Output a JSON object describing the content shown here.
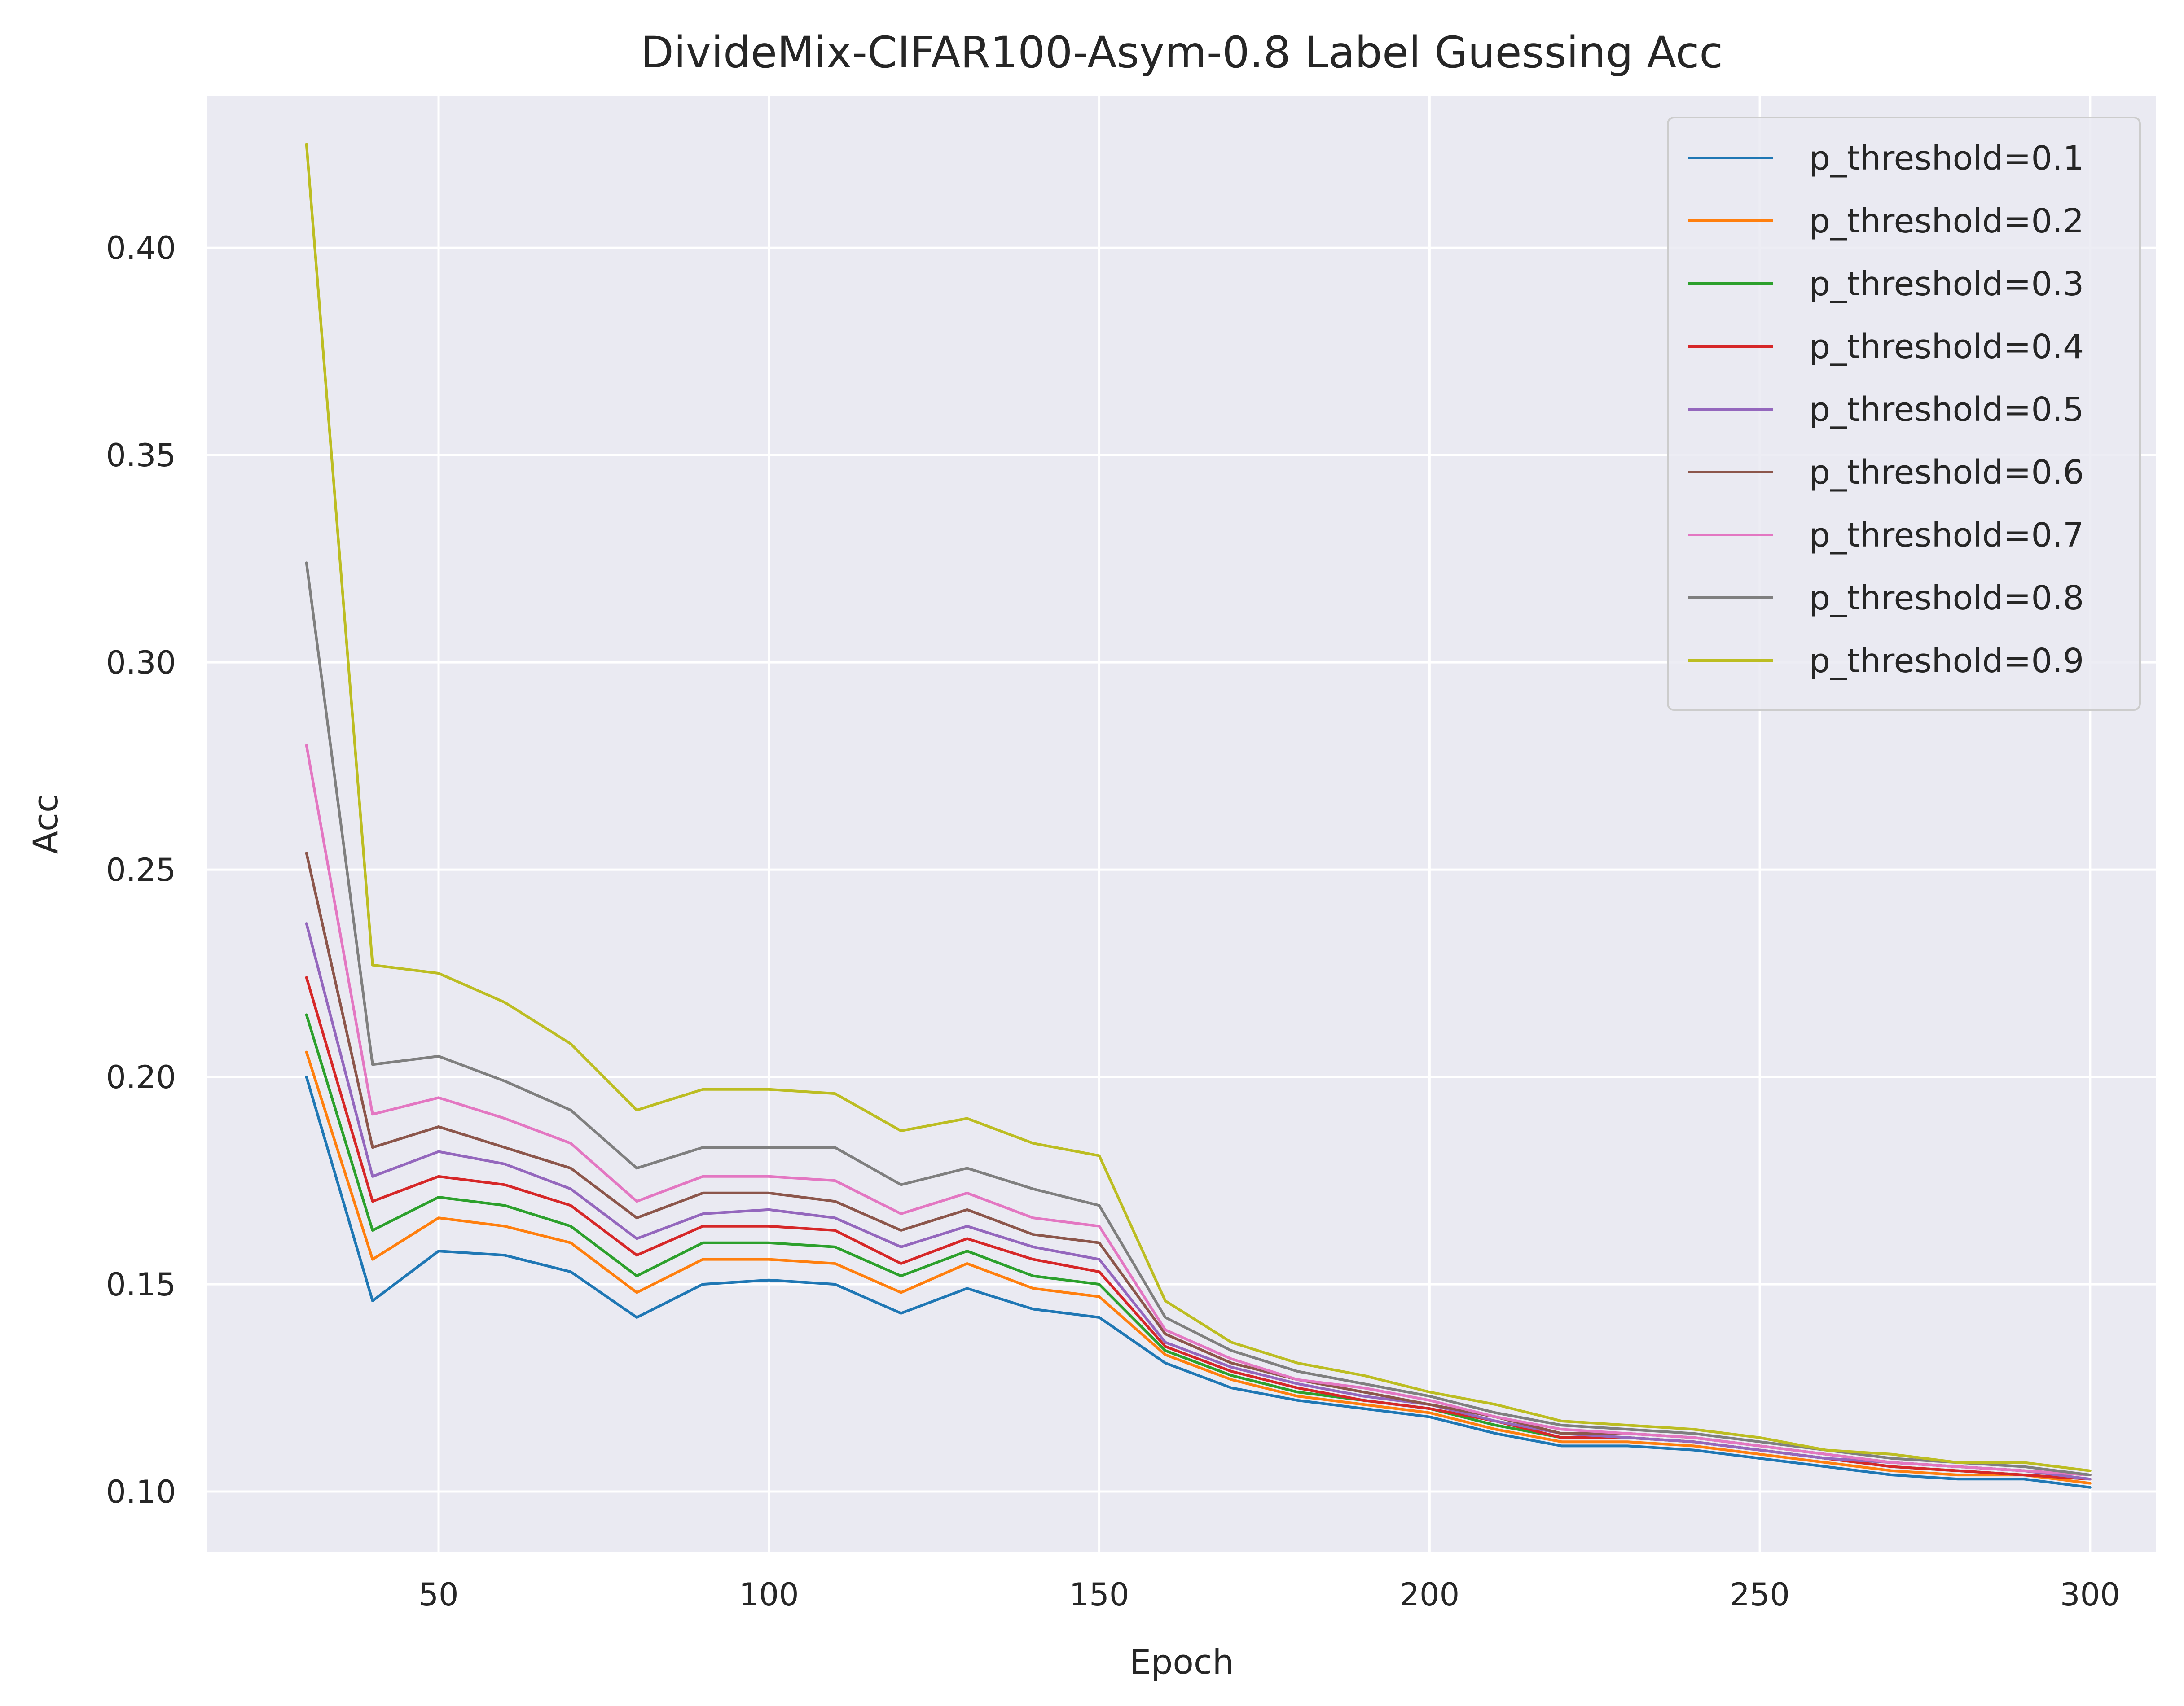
{
  "chart_data": {
    "type": "line",
    "title": "DivideMix-CIFAR100-Asym-0.8 Label Guessing Acc",
    "xlabel": "Epoch",
    "ylabel": "Acc",
    "xlim": [
      15,
      310
    ],
    "ylim": [
      0.0855,
      0.4365
    ],
    "xticks": [
      50,
      100,
      150,
      200,
      250,
      300
    ],
    "xtick_labels": [
      "50",
      "100",
      "150",
      "200",
      "250",
      "300"
    ],
    "yticks": [
      0.1,
      0.15,
      0.2,
      0.25,
      0.3,
      0.35,
      0.4
    ],
    "ytick_labels": [
      "0.10",
      "0.15",
      "0.20",
      "0.25",
      "0.30",
      "0.35",
      "0.40"
    ],
    "grid": true,
    "legend_position": "top-right",
    "background_color": "#eaeaf2",
    "x": [
      30,
      40,
      50,
      60,
      70,
      80,
      90,
      100,
      110,
      120,
      130,
      140,
      150,
      160,
      170,
      180,
      190,
      200,
      210,
      220,
      230,
      240,
      250,
      260,
      270,
      280,
      290,
      300
    ],
    "series": [
      {
        "name": "p_threshold=0.1",
        "color": "#1f77b4",
        "values": [
          0.2,
          0.146,
          0.158,
          0.157,
          0.153,
          0.142,
          0.15,
          0.151,
          0.15,
          0.143,
          0.149,
          0.144,
          0.142,
          0.131,
          0.125,
          0.122,
          0.12,
          0.118,
          0.114,
          0.111,
          0.111,
          0.11,
          0.108,
          0.106,
          0.104,
          0.103,
          0.103,
          0.101
        ]
      },
      {
        "name": "p_threshold=0.2",
        "color": "#ff7f0e",
        "values": [
          0.206,
          0.156,
          0.166,
          0.164,
          0.16,
          0.148,
          0.156,
          0.156,
          0.155,
          0.148,
          0.155,
          0.149,
          0.147,
          0.133,
          0.127,
          0.123,
          0.121,
          0.119,
          0.115,
          0.112,
          0.112,
          0.111,
          0.109,
          0.107,
          0.105,
          0.104,
          0.104,
          0.102
        ]
      },
      {
        "name": "p_threshold=0.3",
        "color": "#2ca02c",
        "values": [
          0.215,
          0.163,
          0.171,
          0.169,
          0.164,
          0.152,
          0.16,
          0.16,
          0.159,
          0.152,
          0.158,
          0.152,
          0.15,
          0.134,
          0.128,
          0.124,
          0.122,
          0.12,
          0.116,
          0.113,
          0.113,
          0.112,
          0.11,
          0.108,
          0.106,
          0.105,
          0.104,
          0.103
        ]
      },
      {
        "name": "p_threshold=0.4",
        "color": "#d62728",
        "values": [
          0.224,
          0.17,
          0.176,
          0.174,
          0.169,
          0.157,
          0.164,
          0.164,
          0.163,
          0.155,
          0.161,
          0.156,
          0.153,
          0.135,
          0.129,
          0.125,
          0.122,
          0.12,
          0.117,
          0.113,
          0.113,
          0.112,
          0.11,
          0.108,
          0.106,
          0.105,
          0.104,
          0.103
        ]
      },
      {
        "name": "p_threshold=0.5",
        "color": "#9467bd",
        "values": [
          0.237,
          0.176,
          0.182,
          0.179,
          0.173,
          0.161,
          0.167,
          0.168,
          0.166,
          0.159,
          0.164,
          0.159,
          0.156,
          0.136,
          0.13,
          0.126,
          0.123,
          0.121,
          0.117,
          0.114,
          0.113,
          0.112,
          0.11,
          0.108,
          0.107,
          0.106,
          0.105,
          0.103
        ]
      },
      {
        "name": "p_threshold=0.6",
        "color": "#8c564b",
        "values": [
          0.254,
          0.183,
          0.188,
          0.183,
          0.178,
          0.166,
          0.172,
          0.172,
          0.17,
          0.163,
          0.168,
          0.162,
          0.16,
          0.138,
          0.131,
          0.127,
          0.124,
          0.121,
          0.118,
          0.114,
          0.114,
          0.113,
          0.111,
          0.109,
          0.107,
          0.106,
          0.105,
          0.104
        ]
      },
      {
        "name": "p_threshold=0.7",
        "color": "#e377c2",
        "values": [
          0.28,
          0.191,
          0.195,
          0.19,
          0.184,
          0.17,
          0.176,
          0.176,
          0.175,
          0.167,
          0.172,
          0.166,
          0.164,
          0.139,
          0.132,
          0.127,
          0.125,
          0.122,
          0.118,
          0.115,
          0.114,
          0.113,
          0.111,
          0.109,
          0.107,
          0.106,
          0.105,
          0.104
        ]
      },
      {
        "name": "p_threshold=0.8",
        "color": "#7f7f7f",
        "values": [
          0.324,
          0.203,
          0.205,
          0.199,
          0.192,
          0.178,
          0.183,
          0.183,
          0.183,
          0.174,
          0.178,
          0.173,
          0.169,
          0.142,
          0.134,
          0.129,
          0.126,
          0.123,
          0.119,
          0.116,
          0.115,
          0.114,
          0.112,
          0.11,
          0.108,
          0.107,
          0.106,
          0.104
        ]
      },
      {
        "name": "p_threshold=0.9",
        "color": "#bcbd22",
        "values": [
          0.425,
          0.227,
          0.225,
          0.218,
          0.208,
          0.192,
          0.197,
          0.197,
          0.196,
          0.187,
          0.19,
          0.184,
          0.181,
          0.146,
          0.136,
          0.131,
          0.128,
          0.124,
          0.121,
          0.117,
          0.116,
          0.115,
          0.113,
          0.11,
          0.109,
          0.107,
          0.107,
          0.105
        ]
      }
    ]
  }
}
